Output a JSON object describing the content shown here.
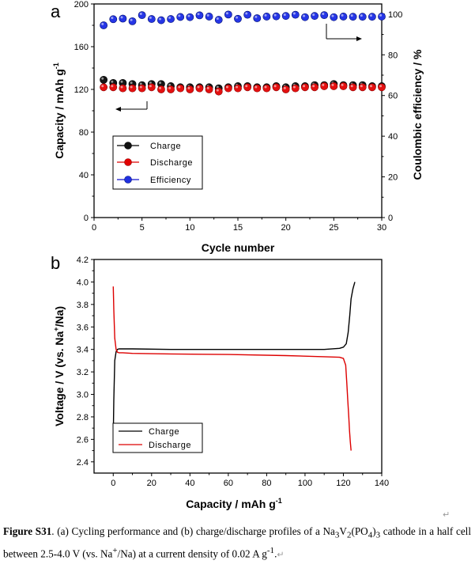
{
  "chart_data": [
    {
      "id": "a",
      "panel_label": "a",
      "type": "scatter",
      "xlabel": "Cycle number",
      "ylabel": "Capacity / mAh g",
      "ylabel_superscript": "-1",
      "y2label": "Coulombic efficiency / %",
      "xlim": [
        0,
        30
      ],
      "ylim": [
        0,
        200
      ],
      "y2lim": [
        0,
        105
      ],
      "xticks": [
        "0",
        "5",
        "10",
        "15",
        "20",
        "25",
        "30"
      ],
      "yticks": [
        "0",
        "40",
        "80",
        "120",
        "160",
        "200"
      ],
      "y2ticks": [
        "0",
        "20",
        "40",
        "60",
        "80",
        "100"
      ],
      "x": [
        1,
        2,
        3,
        4,
        5,
        6,
        7,
        8,
        9,
        10,
        11,
        12,
        13,
        14,
        15,
        16,
        17,
        18,
        19,
        20,
        21,
        22,
        23,
        24,
        25,
        26,
        27,
        28,
        29,
        30
      ],
      "series": [
        {
          "name": "Charge",
          "axis": "left",
          "color": "#000000",
          "values": [
            129,
            126,
            126,
            125,
            124,
            125,
            125,
            123,
            122,
            122,
            122,
            122,
            121,
            122,
            123,
            123,
            122,
            122,
            123,
            122,
            123,
            123,
            124,
            124,
            125,
            124,
            124,
            124,
            123,
            123
          ]
        },
        {
          "name": "Discharge",
          "axis": "left",
          "color": "#dd0000",
          "values": [
            122,
            122,
            121,
            121,
            121,
            122,
            120,
            120,
            121,
            120,
            121,
            120,
            118,
            121,
            121,
            122,
            121,
            121,
            122,
            120,
            121,
            122,
            122,
            123,
            123,
            123,
            122,
            122,
            122,
            122
          ]
        },
        {
          "name": "Efficiency",
          "axis": "right",
          "color": "#1515cc",
          "values": [
            94.5,
            97.5,
            97.8,
            96.5,
            99.5,
            97.6,
            97.0,
            97.6,
            98.6,
            98.5,
            99.4,
            98.8,
            97.2,
            99.8,
            97.7,
            99.7,
            98.0,
            98.8,
            98.9,
            99.1,
            99.7,
            98.5,
            99.1,
            99.5,
            98.5,
            98.8,
            98.7,
            98.7,
            98.7,
            98.8
          ]
        }
      ],
      "legend": [
        "Charge",
        "Discharge",
        "Efficiency"
      ],
      "legend_position": "lower-left",
      "annotations": [
        "arrow pointing left from charge/discharge data toward left axis",
        "arrow pointing right from efficiency data toward right axis"
      ]
    },
    {
      "id": "b",
      "panel_label": "b",
      "type": "line",
      "xlabel": "Capacity / mAh g",
      "xlabel_superscript": "-1",
      "ylabel": "Voltage / V (vs. Na",
      "ylabel_superscript": "+",
      "ylabel_suffix": "/Na)",
      "xlim": [
        -10,
        140
      ],
      "ylim": [
        2.3,
        4.2
      ],
      "xticks": [
        "0",
        "20",
        "40",
        "60",
        "80",
        "100",
        "120",
        "140"
      ],
      "yticks": [
        "2.4",
        "2.6",
        "2.8",
        "3.0",
        "3.2",
        "3.4",
        "3.6",
        "3.8",
        "4.0",
        "4.2"
      ],
      "series": [
        {
          "name": "Charge",
          "color": "#000000",
          "x": [
            0,
            0.3,
            0.8,
            1.5,
            2.2,
            3,
            5,
            10,
            30,
            60,
            90,
            110,
            118,
            120,
            121.5,
            122.5,
            123.3,
            124,
            125,
            126
          ],
          "y": [
            2.62,
            2.95,
            3.3,
            3.38,
            3.4,
            3.405,
            3.405,
            3.405,
            3.4,
            3.4,
            3.4,
            3.4,
            3.41,
            3.42,
            3.45,
            3.55,
            3.7,
            3.85,
            3.94,
            4.0
          ]
        },
        {
          "name": "Discharge",
          "color": "#dd0000",
          "x": [
            0,
            0.3,
            0.8,
            1.5,
            2.2,
            3,
            5,
            10,
            30,
            60,
            90,
            110,
            118,
            120,
            121.2,
            121.8,
            122.3,
            122.8,
            123.2,
            123.6,
            124
          ],
          "y": [
            3.96,
            3.75,
            3.5,
            3.4,
            3.375,
            3.37,
            3.37,
            3.365,
            3.36,
            3.355,
            3.345,
            3.335,
            3.33,
            3.32,
            3.26,
            3.1,
            2.95,
            2.8,
            2.68,
            2.58,
            2.5
          ]
        }
      ],
      "legend": [
        "Charge",
        "Discharge"
      ],
      "legend_position": "lower-left"
    }
  ],
  "caption": {
    "lead": "Figure S31",
    "text_1": ". (a) Cycling performance and (b) charge/discharge profiles of a Na",
    "sub_1": "3",
    "text_2": "V",
    "sub_2": "2",
    "text_3": "(PO",
    "sub_3": "4",
    "text_4": ")",
    "sub_4": "3",
    "text_5": " cathode in a half cell between 2.5-4.0 V (vs. Na",
    "sup_1": "+",
    "text_6": "/Na) at a current density of 0.02 A g",
    "sup_2": "-1",
    "text_7": "."
  },
  "marks": {
    "return_symbol": "↵"
  }
}
